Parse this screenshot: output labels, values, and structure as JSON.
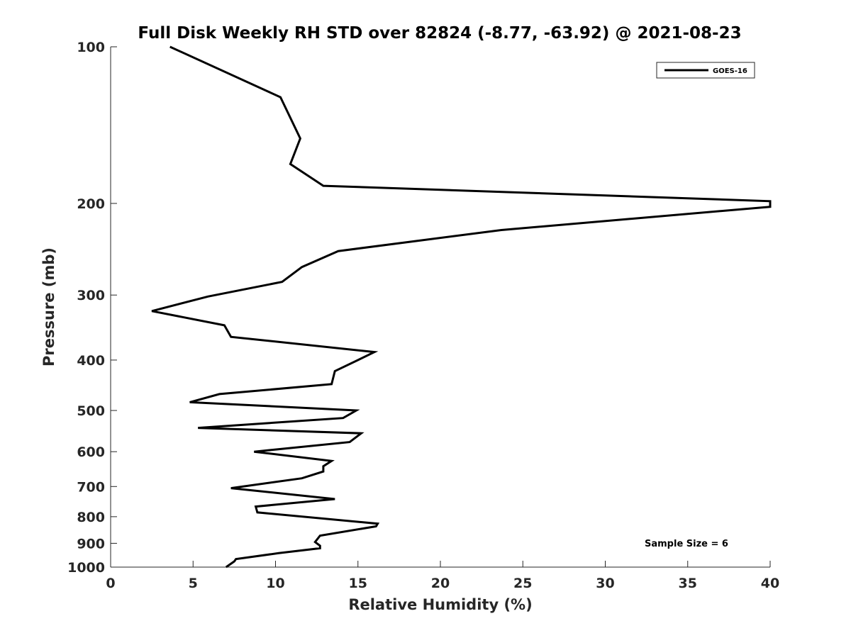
{
  "chart_data": {
    "type": "line",
    "title": "Full Disk Weekly RH STD over 82824 (-8.77, -63.92) @ 2021-08-23",
    "xlabel": "Relative Humidity (%)",
    "ylabel": "Pressure (mb)",
    "xlim": [
      0,
      40
    ],
    "ylim": [
      100,
      1000
    ],
    "yscale": "log",
    "yreversed": true,
    "xticks": [
      0,
      5,
      10,
      15,
      20,
      25,
      30,
      35,
      40
    ],
    "xtick_labels": [
      "0",
      "5",
      "10",
      "15",
      "20",
      "25",
      "30",
      "35",
      "40"
    ],
    "yticks": [
      100,
      200,
      300,
      400,
      500,
      600,
      700,
      800,
      900,
      1000
    ],
    "ytick_labels": [
      "100",
      "200",
      "300",
      "400",
      "500",
      "600",
      "700",
      "800",
      "900",
      "1000"
    ],
    "grid": false,
    "legend_position": "top-right",
    "series": [
      {
        "name": "GOES-16",
        "color": "#000000",
        "points": [
          [
            3.6,
            100
          ],
          [
            10.3,
            125
          ],
          [
            11.5,
            150
          ],
          [
            10.9,
            168
          ],
          [
            12.9,
            185
          ],
          [
            40.0,
            198
          ],
          [
            40.0,
            203
          ],
          [
            23.7,
            225
          ],
          [
            13.8,
            247
          ],
          [
            11.6,
            265
          ],
          [
            10.4,
            283
          ],
          [
            5.9,
            302
          ],
          [
            2.5,
            322
          ],
          [
            6.9,
            343
          ],
          [
            7.3,
            361
          ],
          [
            16.0,
            386
          ],
          [
            15.0,
            400
          ],
          [
            13.6,
            420
          ],
          [
            13.4,
            445
          ],
          [
            6.6,
            465
          ],
          [
            4.8,
            482
          ],
          [
            14.9,
            500
          ],
          [
            14.1,
            517
          ],
          [
            5.3,
            540
          ],
          [
            15.2,
            553
          ],
          [
            14.5,
            575
          ],
          [
            8.7,
            600
          ],
          [
            13.4,
            625
          ],
          [
            12.9,
            640
          ],
          [
            12.9,
            655
          ],
          [
            11.6,
            675
          ],
          [
            7.3,
            705
          ],
          [
            13.6,
            740
          ],
          [
            8.8,
            765
          ],
          [
            8.9,
            785
          ],
          [
            16.2,
            825
          ],
          [
            16.1,
            835
          ],
          [
            12.7,
            870
          ],
          [
            12.4,
            895
          ],
          [
            12.7,
            910
          ],
          [
            12.7,
            920
          ],
          [
            10.2,
            940
          ],
          [
            7.6,
            965
          ],
          [
            7.5,
            975
          ],
          [
            7.0,
            1000
          ]
        ]
      }
    ],
    "annotation": "Sample Size = 6"
  }
}
